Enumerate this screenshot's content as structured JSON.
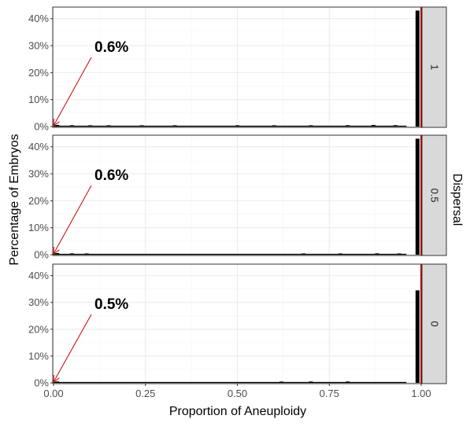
{
  "chart_data": {
    "type": "bar",
    "title": "",
    "xlabel": "Proportion of Aneuploidy",
    "ylabel": "Percentage of Embryos",
    "facet_label": "Dispersal",
    "xlim": [
      0,
      1
    ],
    "ylim": [
      0,
      44
    ],
    "x_ticks": [
      "0.00",
      "0.25",
      "0.50",
      "0.75",
      "1.00"
    ],
    "y_ticks": [
      "0%",
      "10%",
      "20%",
      "30%",
      "40%"
    ],
    "grid": true,
    "reference_line_x": 1.0,
    "reference_line_color": "#cc0000",
    "panels": [
      {
        "strip": "1",
        "annotation": "0.6%",
        "bars": [
          {
            "x": 0.01,
            "value": 0.6
          },
          {
            "x": 0.05,
            "value": 0.5
          },
          {
            "x": 0.1,
            "value": 0.4
          },
          {
            "x": 0.15,
            "value": 0.3
          },
          {
            "x": 0.24,
            "value": 0.3
          },
          {
            "x": 0.33,
            "value": 0.3
          },
          {
            "x": 0.5,
            "value": 0.3
          },
          {
            "x": 0.6,
            "value": 0.3
          },
          {
            "x": 0.7,
            "value": 0.3
          },
          {
            "x": 0.8,
            "value": 0.5
          },
          {
            "x": 0.87,
            "value": 0.6
          },
          {
            "x": 0.93,
            "value": 0.5
          },
          {
            "x": 0.99,
            "value": 43.0
          }
        ]
      },
      {
        "strip": "0.5",
        "annotation": "0.6%",
        "bars": [
          {
            "x": 0.01,
            "value": 0.6
          },
          {
            "x": 0.05,
            "value": 0.5
          },
          {
            "x": 0.09,
            "value": 0.4
          },
          {
            "x": 0.68,
            "value": 0.3
          },
          {
            "x": 0.78,
            "value": 0.3
          },
          {
            "x": 0.88,
            "value": 0.5
          },
          {
            "x": 0.94,
            "value": 0.4
          },
          {
            "x": 0.99,
            "value": 43.0
          }
        ]
      },
      {
        "strip": "0",
        "annotation": "0.5%",
        "bars": [
          {
            "x": 0.01,
            "value": 0.5
          },
          {
            "x": 0.62,
            "value": 0.3
          },
          {
            "x": 0.7,
            "value": 0.5
          },
          {
            "x": 0.8,
            "value": 0.5
          },
          {
            "x": 0.99,
            "value": 34.5
          }
        ]
      }
    ]
  },
  "colors": {
    "bar_fill": "#000000",
    "reference_line": "#cc0000",
    "annotation_arrow": "#cc0000",
    "strip_fill": "#d9d9d9",
    "grid": "#ebebeb",
    "panel_border": "#333333"
  }
}
